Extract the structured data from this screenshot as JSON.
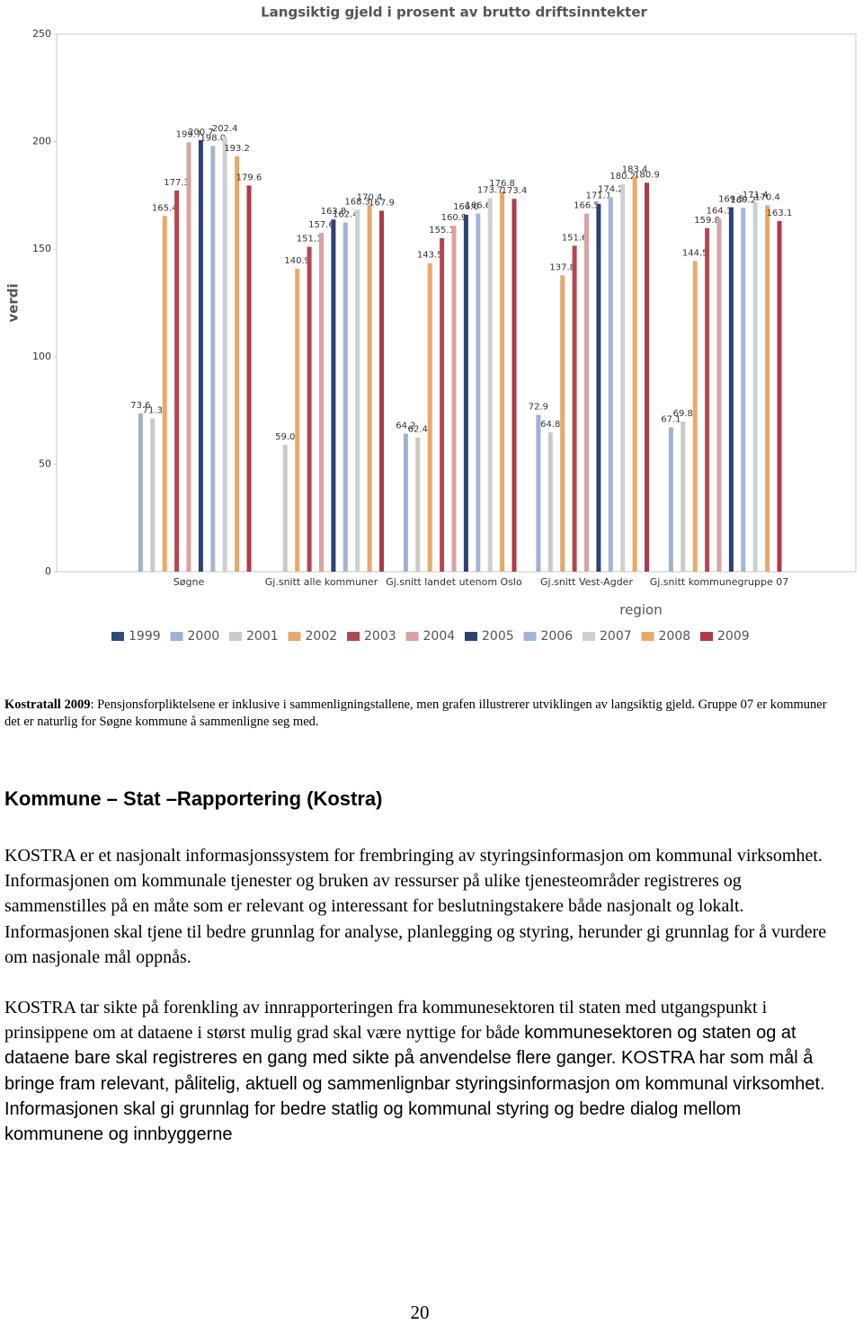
{
  "chart_data": {
    "type": "bar",
    "title": "Langsiktig gjeld i prosent av brutto driftsinntekter",
    "x_label": "region",
    "y_label": "verdi",
    "categories": [
      "Søgne",
      "Gj.snitt alle kommuner",
      "Gj.snitt landet utenom Oslo",
      "Gj.snitt Vest-Agder",
      "Gj.snitt kommunegruppe 07"
    ],
    "ylim": [
      0,
      250
    ],
    "yticks": [
      0,
      50,
      100,
      150,
      200,
      250
    ],
    "grid": false,
    "legend": "bottom",
    "series": [
      {
        "name": "1999",
        "color": "#2f4a7e",
        "values": [
          null,
          null,
          null,
          null,
          null
        ],
        "value_labels": [
          null,
          null,
          null,
          null,
          null
        ]
      },
      {
        "name": "2000",
        "color": "#9fb1d3",
        "values": [
          73.6,
          null,
          64.2,
          72.9,
          67.1
        ],
        "value_labels": [
          "73.6",
          null,
          "64.2",
          "72.9",
          "67.1"
        ]
      },
      {
        "name": "2001",
        "color": "#c9c9c9",
        "values": [
          71.3,
          59.0,
          62.4,
          64.8,
          69.8
        ],
        "value_labels": [
          "71.3",
          "59.0",
          "62.4",
          "64.8",
          "69.8"
        ]
      },
      {
        "name": "2002",
        "color": "#e9a86a",
        "values": [
          165.4,
          140.9,
          143.5,
          137.8,
          144.5
        ],
        "value_labels": [
          "165.4",
          "140.9",
          "143.5",
          "137.8",
          "144.5"
        ]
      },
      {
        "name": "2003",
        "color": "#b6464f",
        "values": [
          177.3,
          151.1,
          155.1,
          151.6,
          159.8
        ],
        "value_labels": [
          "177.3",
          "151.1",
          "155.1",
          "151.6",
          "159.8"
        ]
      },
      {
        "name": "2004",
        "color": "#d9a2a2",
        "values": [
          199.7,
          157.6,
          160.9,
          166.5,
          164.1
        ],
        "value_labels": [
          "199.7",
          "157.6",
          "160.9",
          "166.5",
          "164.1"
        ]
      },
      {
        "name": "2005",
        "color": "#2b4277",
        "values": [
          200.7,
          163.8,
          166.0,
          171.1,
          169.5
        ],
        "value_labels": [
          "200.7",
          "163.8",
          "166.0",
          "171.1",
          "169.5"
        ]
      },
      {
        "name": "2006",
        "color": "#a3b5d6",
        "values": [
          198.0,
          162.4,
          166.6,
          174.2,
          169.2
        ],
        "value_labels": [
          "198.0",
          "162.4",
          "166.6",
          "174.2",
          "169.2"
        ]
      },
      {
        "name": "2007",
        "color": "#cfcfcf",
        "values": [
          202.4,
          168.3,
          173.7,
          180.2,
          171.4
        ],
        "value_labels": [
          "202.4",
          "168.3",
          "173.7",
          "180.2",
          "171.4"
        ]
      },
      {
        "name": "2008",
        "color": "#eaa766",
        "values": [
          193.2,
          170.4,
          176.8,
          183.4,
          170.4
        ],
        "value_labels": [
          "193.2",
          "170.4",
          "176.8",
          "183.4",
          "170.4"
        ]
      },
      {
        "name": "2009",
        "color": "#b03a45",
        "values": [
          179.6,
          167.9,
          173.4,
          180.9,
          163.1
        ],
        "value_labels": [
          "179.6",
          "167.9",
          "173.4",
          "180.9",
          "163.1"
        ]
      }
    ]
  },
  "caption": {
    "bold": "Kostratall 2009",
    "text": ": Pensjonsforpliktelsene er inklusive i sammenligningstallene, men grafen illustrerer utviklingen av langsiktig gjeld. Gruppe 07 er kommuner det er naturlig for Søgne kommune å sammenligne seg med."
  },
  "heading": "Kommune – Stat –Rapportering (Kostra)",
  "paragraphs": [
    {
      "text": "KOSTRA er et nasjonalt informasjonssystem for frembringing av styringsinformasjon om kommunal virksomhet. Informasjonen om kommunale tjenester og bruken av ressurser på ulike tjenesteområder registreres og sammenstilles på en måte som er relevant og interessant for beslutningstakere både nasjonalt og lokalt. Informasjonen skal tjene til bedre grunnlag for analyse, planlegging og styring, herunder gi grunnlag for å vurdere om nasjonale mål oppnås."
    },
    {
      "serif": "KOSTRA tar sikte på forenkling av innrapporteringen fra kommunesektoren til staten med utgangspunkt i prinsippene om at dataene i størst mulig grad skal være nyttige for både",
      "sans": "kommunesektoren og staten og at dataene bare skal registreres en gang med sikte på anvendelse flere ganger. KOSTRA har som mål å bringe fram relevant, pålitelig, aktuell og sammenlignbar styringsinformasjon om kommunal virksomhet. Informasjonen skal gi grunnlag for bedre statlig og kommunal styring og bedre dialog mellom kommunene og innbyggerne"
    }
  ],
  "page_number": "20"
}
